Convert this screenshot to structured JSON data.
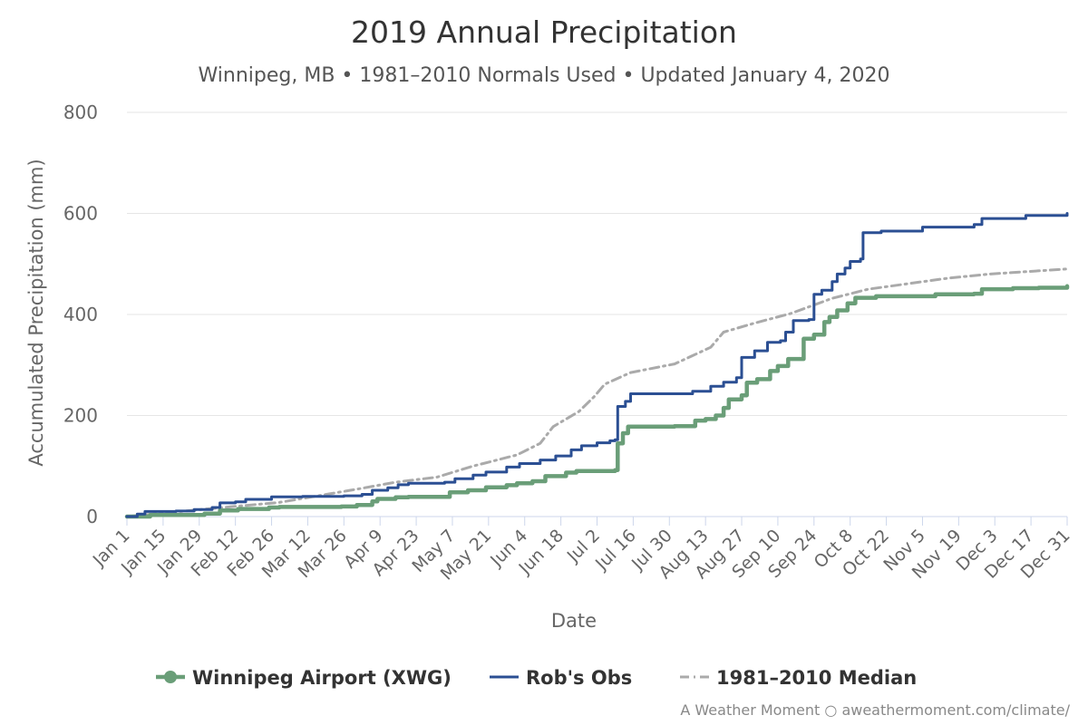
{
  "chart_data": {
    "type": "line",
    "title": "2019 Annual Precipitation",
    "subtitle": "Winnipeg, MB • 1981–2010 Normals Used • Updated January 4, 2020",
    "xlabel": "Date",
    "ylabel": "Accumulated Precipitation (mm)",
    "ylim": [
      0,
      800
    ],
    "yticks": [
      0,
      200,
      400,
      600,
      800
    ],
    "grid": true,
    "legend_position": "bottom",
    "x_domain": [
      "2019-01-01",
      "2019-12-31"
    ],
    "xticks": [
      {
        "date": "2019-01-01",
        "label": "Jan 1"
      },
      {
        "date": "2019-01-15",
        "label": "Jan 15"
      },
      {
        "date": "2019-01-29",
        "label": "Jan 29"
      },
      {
        "date": "2019-02-12",
        "label": "Feb 12"
      },
      {
        "date": "2019-02-26",
        "label": "Feb 26"
      },
      {
        "date": "2019-03-12",
        "label": "Mar 12"
      },
      {
        "date": "2019-03-26",
        "label": "Mar 26"
      },
      {
        "date": "2019-04-09",
        "label": "Apr 9"
      },
      {
        "date": "2019-04-23",
        "label": "Apr 23"
      },
      {
        "date": "2019-05-07",
        "label": "May 7"
      },
      {
        "date": "2019-05-21",
        "label": "May 21"
      },
      {
        "date": "2019-06-04",
        "label": "Jun 4"
      },
      {
        "date": "2019-06-18",
        "label": "Jun 18"
      },
      {
        "date": "2019-07-02",
        "label": "Jul 2"
      },
      {
        "date": "2019-07-16",
        "label": "Jul 16"
      },
      {
        "date": "2019-07-30",
        "label": "Jul 30"
      },
      {
        "date": "2019-08-13",
        "label": "Aug 13"
      },
      {
        "date": "2019-08-27",
        "label": "Aug 27"
      },
      {
        "date": "2019-09-10",
        "label": "Sep 10"
      },
      {
        "date": "2019-09-24",
        "label": "Sep 24"
      },
      {
        "date": "2019-10-08",
        "label": "Oct 8"
      },
      {
        "date": "2019-10-22",
        "label": "Oct 22"
      },
      {
        "date": "2019-11-05",
        "label": "Nov 5"
      },
      {
        "date": "2019-11-19",
        "label": "Nov 19"
      },
      {
        "date": "2019-12-03",
        "label": "Dec 3"
      },
      {
        "date": "2019-12-17",
        "label": "Dec 17"
      },
      {
        "date": "2019-12-31",
        "label": "Dec 31"
      }
    ],
    "series": [
      {
        "name": "Winnipeg Airport (XWG)",
        "color": "#6a9e78",
        "style": "solid-thick",
        "points": [
          [
            "2019-01-01",
            0
          ],
          [
            "2019-01-10",
            3
          ],
          [
            "2019-01-31",
            6
          ],
          [
            "2019-02-06",
            12
          ],
          [
            "2019-02-13",
            15
          ],
          [
            "2019-02-25",
            18
          ],
          [
            "2019-03-01",
            19
          ],
          [
            "2019-03-25",
            20
          ],
          [
            "2019-03-31",
            23
          ],
          [
            "2019-04-06",
            30
          ],
          [
            "2019-04-08",
            35
          ],
          [
            "2019-04-15",
            38
          ],
          [
            "2019-04-20",
            39
          ],
          [
            "2019-05-06",
            48
          ],
          [
            "2019-05-13",
            52
          ],
          [
            "2019-05-20",
            58
          ],
          [
            "2019-05-28",
            62
          ],
          [
            "2019-06-01",
            66
          ],
          [
            "2019-06-07",
            70
          ],
          [
            "2019-06-12",
            80
          ],
          [
            "2019-06-20",
            87
          ],
          [
            "2019-06-24",
            90
          ],
          [
            "2019-07-09",
            92
          ],
          [
            "2019-07-10",
            145
          ],
          [
            "2019-07-12",
            165
          ],
          [
            "2019-07-14",
            178
          ],
          [
            "2019-08-01",
            179
          ],
          [
            "2019-08-09",
            190
          ],
          [
            "2019-08-13",
            193
          ],
          [
            "2019-08-17",
            200
          ],
          [
            "2019-08-20",
            215
          ],
          [
            "2019-08-22",
            232
          ],
          [
            "2019-08-27",
            240
          ],
          [
            "2019-08-29",
            265
          ],
          [
            "2019-09-02",
            272
          ],
          [
            "2019-09-07",
            288
          ],
          [
            "2019-09-10",
            298
          ],
          [
            "2019-09-14",
            312
          ],
          [
            "2019-09-20",
            352
          ],
          [
            "2019-09-24",
            360
          ],
          [
            "2019-09-28",
            385
          ],
          [
            "2019-09-30",
            395
          ],
          [
            "2019-10-03",
            408
          ],
          [
            "2019-10-07",
            422
          ],
          [
            "2019-10-10",
            433
          ],
          [
            "2019-10-18",
            436
          ],
          [
            "2019-11-10",
            440
          ],
          [
            "2019-11-25",
            441
          ],
          [
            "2019-11-28",
            450
          ],
          [
            "2019-12-10",
            452
          ],
          [
            "2019-12-20",
            453
          ],
          [
            "2019-12-31",
            456
          ]
        ]
      },
      {
        "name": "Rob's Obs",
        "color": "#2b4f93",
        "style": "solid",
        "points": [
          [
            "2019-01-01",
            0
          ],
          [
            "2019-01-05",
            5
          ],
          [
            "2019-01-08",
            10
          ],
          [
            "2019-01-20",
            11
          ],
          [
            "2019-01-27",
            14
          ],
          [
            "2019-02-03",
            18
          ],
          [
            "2019-02-06",
            27
          ],
          [
            "2019-02-12",
            29
          ],
          [
            "2019-02-16",
            34
          ],
          [
            "2019-02-26",
            39
          ],
          [
            "2019-03-10",
            40
          ],
          [
            "2019-03-26",
            41
          ],
          [
            "2019-04-02",
            44
          ],
          [
            "2019-04-06",
            52
          ],
          [
            "2019-04-12",
            57
          ],
          [
            "2019-04-16",
            63
          ],
          [
            "2019-04-20",
            66
          ],
          [
            "2019-05-04",
            68
          ],
          [
            "2019-05-08",
            75
          ],
          [
            "2019-05-15",
            82
          ],
          [
            "2019-05-20",
            88
          ],
          [
            "2019-05-28",
            98
          ],
          [
            "2019-06-02",
            105
          ],
          [
            "2019-06-10",
            112
          ],
          [
            "2019-06-16",
            120
          ],
          [
            "2019-06-22",
            132
          ],
          [
            "2019-06-26",
            140
          ],
          [
            "2019-07-02",
            146
          ],
          [
            "2019-07-07",
            150
          ],
          [
            "2019-07-09",
            152
          ],
          [
            "2019-07-10",
            218
          ],
          [
            "2019-07-13",
            228
          ],
          [
            "2019-07-15",
            243
          ],
          [
            "2019-08-08",
            248
          ],
          [
            "2019-08-15",
            258
          ],
          [
            "2019-08-20",
            266
          ],
          [
            "2019-08-25",
            275
          ],
          [
            "2019-08-27",
            315
          ],
          [
            "2019-09-01",
            328
          ],
          [
            "2019-09-06",
            345
          ],
          [
            "2019-09-11",
            348
          ],
          [
            "2019-09-13",
            365
          ],
          [
            "2019-09-16",
            388
          ],
          [
            "2019-09-22",
            390
          ],
          [
            "2019-09-24",
            440
          ],
          [
            "2019-09-27",
            448
          ],
          [
            "2019-10-01",
            465
          ],
          [
            "2019-10-03",
            480
          ],
          [
            "2019-10-06",
            492
          ],
          [
            "2019-10-08",
            505
          ],
          [
            "2019-10-12",
            510
          ],
          [
            "2019-10-13",
            562
          ],
          [
            "2019-10-20",
            565
          ],
          [
            "2019-11-05",
            573
          ],
          [
            "2019-11-25",
            578
          ],
          [
            "2019-11-28",
            590
          ],
          [
            "2019-12-15",
            596
          ],
          [
            "2019-12-31",
            600
          ]
        ]
      },
      {
        "name": "1981–2010 Median",
        "color": "#aaaaaa",
        "style": "dashdot",
        "points": [
          [
            "2019-01-01",
            0
          ],
          [
            "2019-02-01",
            15
          ],
          [
            "2019-03-01",
            28
          ],
          [
            "2019-04-01",
            55
          ],
          [
            "2019-04-15",
            68
          ],
          [
            "2019-05-01",
            78
          ],
          [
            "2019-05-15",
            100
          ],
          [
            "2019-06-01",
            122
          ],
          [
            "2019-06-10",
            145
          ],
          [
            "2019-06-15",
            178
          ],
          [
            "2019-06-25",
            208
          ],
          [
            "2019-07-01",
            238
          ],
          [
            "2019-07-05",
            262
          ],
          [
            "2019-07-15",
            285
          ],
          [
            "2019-08-01",
            302
          ],
          [
            "2019-08-15",
            335
          ],
          [
            "2019-08-20",
            365
          ],
          [
            "2019-09-01",
            383
          ],
          [
            "2019-09-15",
            402
          ],
          [
            "2019-10-01",
            432
          ],
          [
            "2019-10-15",
            450
          ],
          [
            "2019-11-01",
            462
          ],
          [
            "2019-11-15",
            472
          ],
          [
            "2019-12-01",
            480
          ],
          [
            "2019-12-31",
            490
          ]
        ]
      }
    ]
  },
  "credit": "A Weather Moment ○ aweathermoment.com/climate/"
}
